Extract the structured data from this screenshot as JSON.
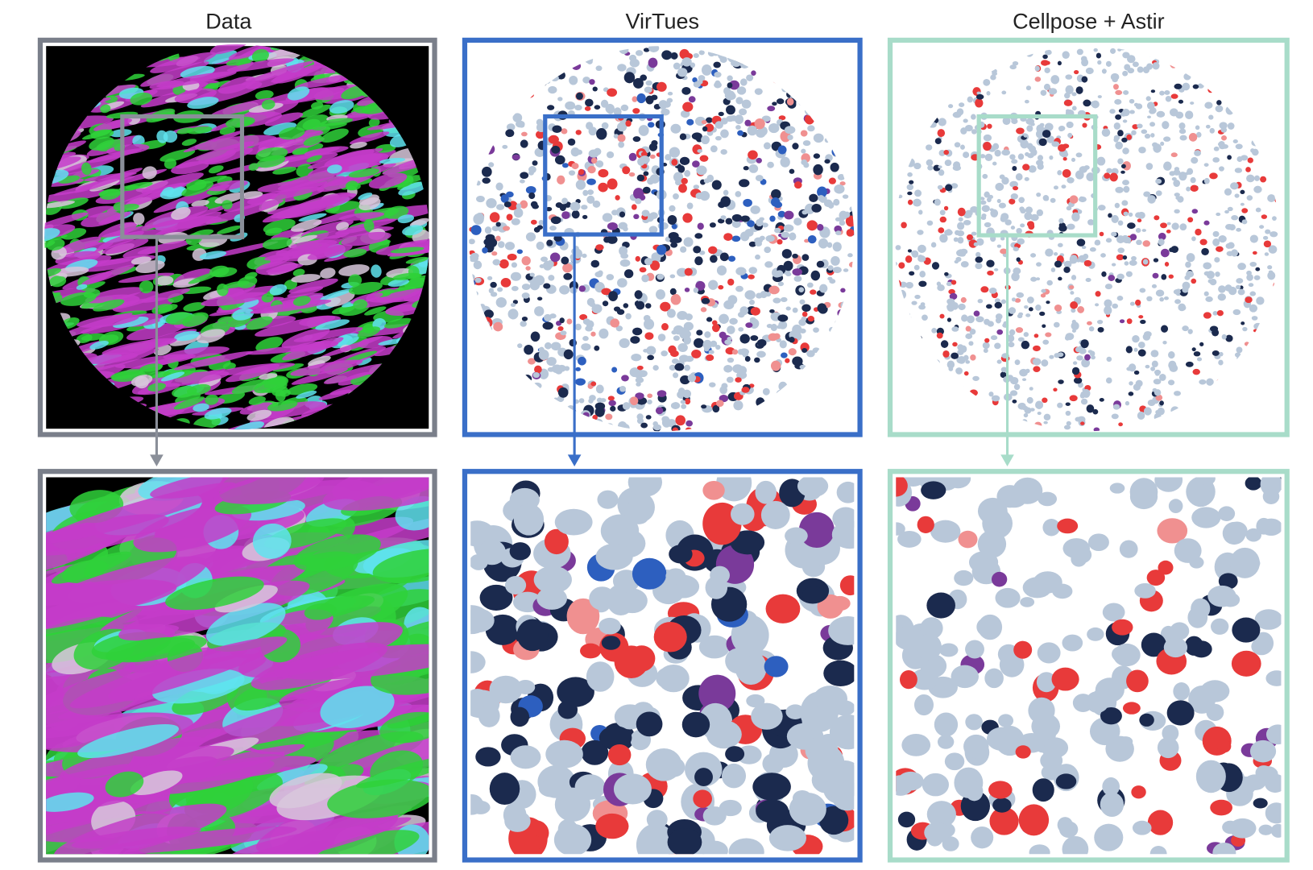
{
  "panels": [
    {
      "title": "Data"
    },
    {
      "title": "VirTues"
    },
    {
      "title": "Cellpose + Astir"
    }
  ]
}
